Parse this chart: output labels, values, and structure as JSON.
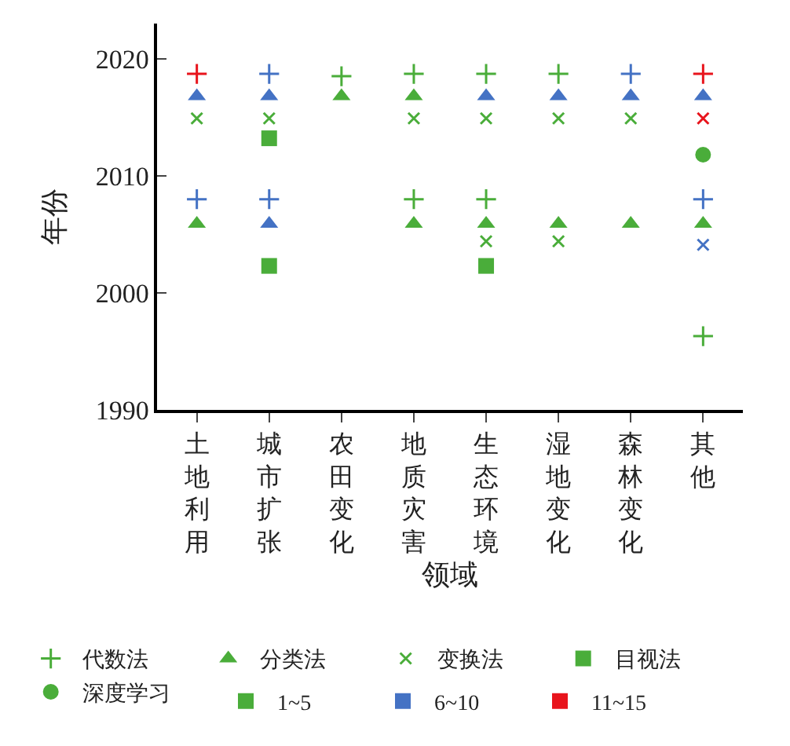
{
  "chart_data": {
    "type": "scatter",
    "xlabel": "领域",
    "ylabel": "年份",
    "categories": [
      "土地利用",
      "城市扩张",
      "农田变化",
      "地质灾害",
      "生态环境",
      "湿地变化",
      "森林变化",
      "其他"
    ],
    "ylim": [
      1990,
      2023
    ],
    "yticks": [
      1990,
      2000,
      2010,
      2020
    ],
    "legend": "bottom",
    "series": [
      {
        "name": "代数法",
        "marker": "cross",
        "color": "#4aad3a",
        "x": [
          "农田变化",
          "土地利用",
          "土地利用",
          "城市扩张",
          "城市扩张",
          "地质灾害",
          "地质灾害",
          "生态环境",
          "生态环境",
          "湿地变化",
          "森林变化",
          "其他",
          "其他",
          "其他"
        ],
        "values": [
          2018.5,
          2018.7,
          2008,
          2018.7,
          2008,
          2018.7,
          2008,
          2018.7,
          2008,
          2018.7,
          2018.7,
          2018.7,
          2008,
          1996.3
        ],
        "colors": [
          "#4aad3a",
          "#e8141c",
          "#4472c4",
          "#4472c4",
          "#4472c4",
          "#4aad3a",
          "#4aad3a",
          "#4aad3a",
          "#4aad3a",
          "#4aad3a",
          "#4472c4",
          "#e8141c",
          "#4472c4",
          "#4aad3a"
        ]
      },
      {
        "name": "分类法",
        "marker": "triangle",
        "color": "#4aad3a",
        "x": [
          "土地利用",
          "土地利用",
          "城市扩张",
          "城市扩张",
          "农田变化",
          "地质灾害",
          "地质灾害",
          "生态环境",
          "生态环境",
          "湿地变化",
          "湿地变化",
          "森林变化",
          "森林变化",
          "其他",
          "其他"
        ],
        "values": [
          2005.9,
          2016.8,
          2016.8,
          2005.9,
          2016.8,
          2016.8,
          2005.9,
          2016.8,
          2005.9,
          2016.8,
          2005.9,
          2016.8,
          2005.9,
          2016.8,
          2005.9
        ],
        "colors": [
          "#4aad3a",
          "#4472c4",
          "#4472c4",
          "#4472c4",
          "#4aad3a",
          "#4aad3a",
          "#4aad3a",
          "#4472c4",
          "#4aad3a",
          "#4472c4",
          "#4aad3a",
          "#4472c4",
          "#4aad3a",
          "#4472c4",
          "#4aad3a"
        ]
      },
      {
        "name": "变换法",
        "marker": "x",
        "color": "#4aad3a",
        "x": [
          "土地利用",
          "城市扩张",
          "地质灾害",
          "生态环境",
          "生态环境",
          "湿地变化",
          "湿地变化",
          "森林变化",
          "其他",
          "其他"
        ],
        "values": [
          2014.9,
          2014.9,
          2014.9,
          2014.9,
          2004.4,
          2014.9,
          2004.4,
          2014.9,
          2014.9,
          2004.1
        ],
        "colors": [
          "#4aad3a",
          "#4aad3a",
          "#4aad3a",
          "#4aad3a",
          "#4aad3a",
          "#4aad3a",
          "#4aad3a",
          "#4aad3a",
          "#e8141c",
          "#4472c4"
        ]
      },
      {
        "name": "目视法",
        "marker": "square",
        "color": "#4aad3a",
        "x": [
          "城市扩张",
          "城市扩张",
          "生态环境"
        ],
        "values": [
          2013.2,
          2002.3,
          2002.3
        ],
        "colors": [
          "#4aad3a",
          "#4aad3a",
          "#4aad3a"
        ]
      },
      {
        "name": "深度学习",
        "marker": "circle",
        "color": "#4aad3a",
        "x": [
          "其他"
        ],
        "values": [
          2011.8
        ],
        "colors": [
          "#4aad3a"
        ]
      },
      {
        "name": "1~5",
        "marker": "square",
        "color": "#4aad3a",
        "values": [
          null,
          null,
          null,
          null,
          null,
          null,
          null,
          null
        ]
      },
      {
        "name": "6~10",
        "marker": "square",
        "color": "#4472c4",
        "values": [
          null,
          null,
          null,
          null,
          null,
          null,
          null,
          null
        ]
      },
      {
        "name": "11~15",
        "marker": "square",
        "color": "#e8141c",
        "values": [
          null,
          null,
          null,
          null,
          null,
          null,
          null,
          null
        ]
      }
    ]
  }
}
